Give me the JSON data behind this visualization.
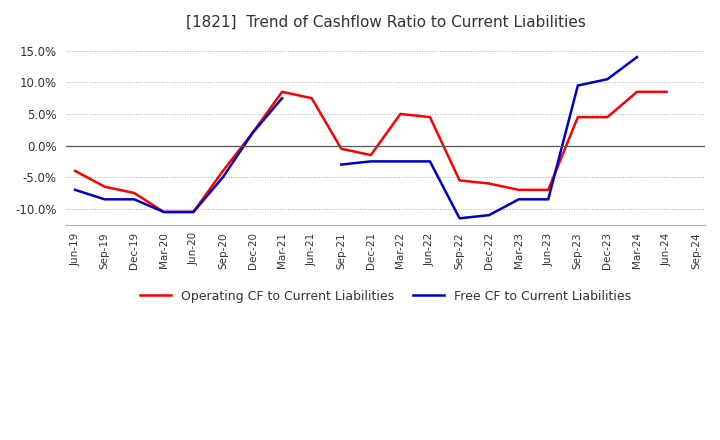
{
  "title": "[1821]  Trend of Cashflow Ratio to Current Liabilities",
  "x_labels": [
    "Jun-19",
    "Sep-19",
    "Dec-19",
    "Mar-20",
    "Jun-20",
    "Sep-20",
    "Dec-20",
    "Mar-21",
    "Jun-21",
    "Sep-21",
    "Dec-21",
    "Mar-22",
    "Jun-22",
    "Sep-22",
    "Dec-22",
    "Mar-23",
    "Jun-23",
    "Sep-23",
    "Dec-23",
    "Mar-24",
    "Jun-24",
    "Sep-24"
  ],
  "operating_cf": [
    -4.0,
    -6.5,
    -7.5,
    -10.5,
    -10.5,
    -4.0,
    2.0,
    8.5,
    7.5,
    -0.5,
    -1.5,
    5.0,
    4.5,
    -5.5,
    -6.0,
    -7.0,
    -7.0,
    4.5,
    4.5,
    8.5,
    8.5,
    null
  ],
  "free_cf": [
    -7.0,
    -8.5,
    -8.5,
    -10.5,
    -10.5,
    -5.0,
    2.0,
    7.5,
    null,
    -3.0,
    -2.5,
    -2.5,
    -2.5,
    -11.5,
    -11.0,
    -8.5,
    -8.5,
    9.5,
    10.5,
    14.0,
    null,
    null
  ],
  "operating_color": "#ff0000",
  "free_color": "#0000cc",
  "ylim": [
    -12.5,
    17.0
  ],
  "yticks": [
    -10.0,
    -5.0,
    0.0,
    5.0,
    10.0,
    15.0
  ],
  "background_color": "#ffffff",
  "grid_color": "#aaaaaa",
  "title_fontsize": 11,
  "legend_labels": [
    "Operating CF to Current Liabilities",
    "Free CF to Current Liabilities"
  ]
}
